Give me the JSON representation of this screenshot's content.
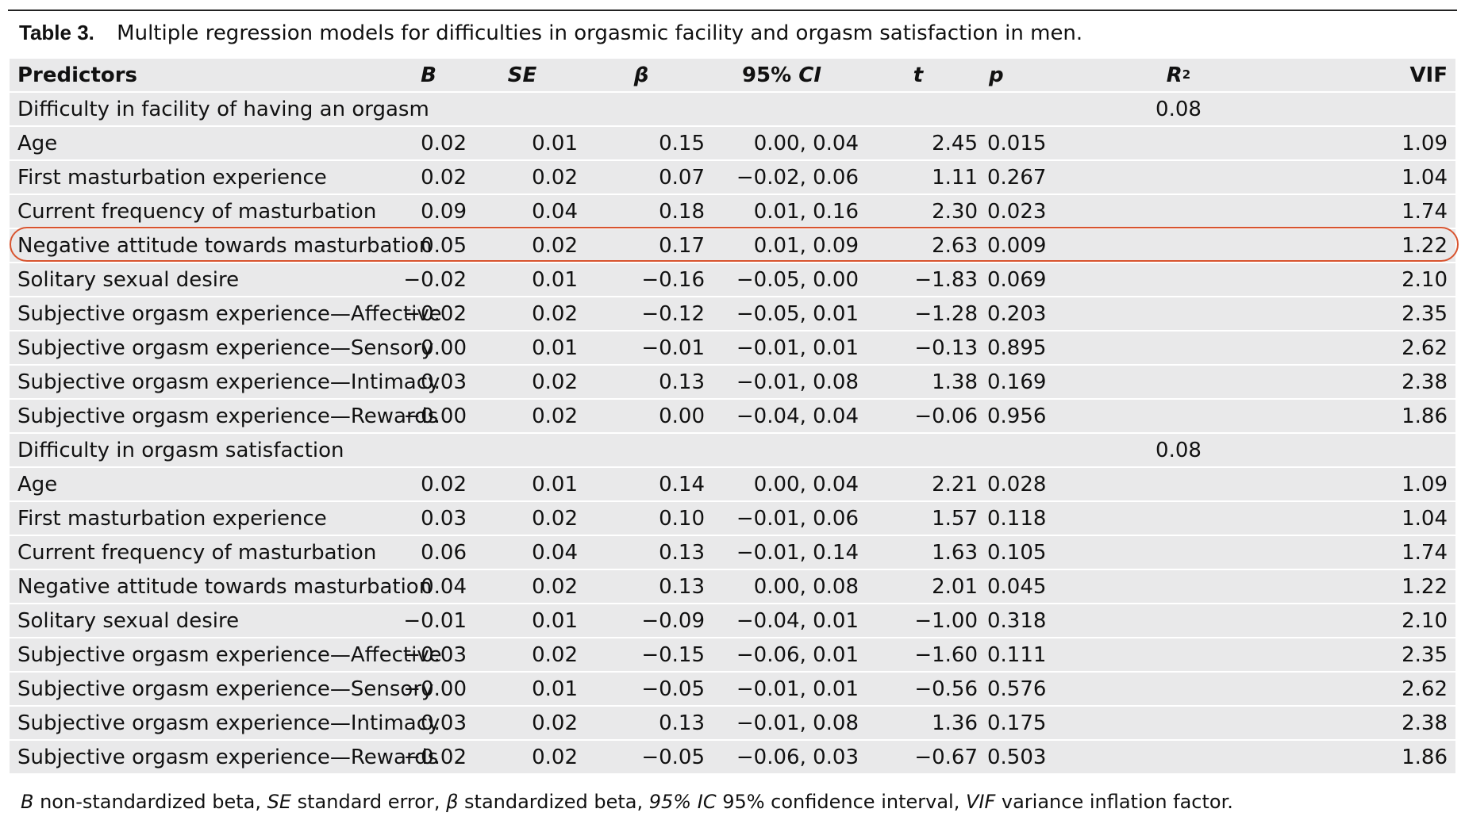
{
  "caption": {
    "label": "Table 3.",
    "text": "Multiple regression models for difficulties in orgasmic facility and orgasm satisfaction in men."
  },
  "headers": {
    "predictors": "Predictors",
    "b": "B",
    "se": "SE",
    "beta": "β",
    "ci_prefix": "95%",
    "ci_italic": "CI",
    "t": "t",
    "p": "p",
    "r2_base": "R",
    "r2_sup": "2",
    "vif": "VIF"
  },
  "sections": [
    {
      "title": "Difficulty in facility of having an orgasm",
      "r2": "0.08",
      "rows": [
        {
          "predictor": "Age",
          "b": "0.02",
          "se": "0.01",
          "beta": "0.15",
          "ci": "0.00, 0.04",
          "t": "2.45",
          "p": "0.015",
          "vif": "1.09"
        },
        {
          "predictor": "First masturbation experience",
          "b": "0.02",
          "se": "0.02",
          "beta": "0.07",
          "ci": "−0.02, 0.06",
          "t": "1.11",
          "p": "0.267",
          "vif": "1.04"
        },
        {
          "predictor": "Current frequency of masturbation",
          "b": "0.09",
          "se": "0.04",
          "beta": "0.18",
          "ci": "0.01, 0.16",
          "t": "2.30",
          "p": "0.023",
          "vif": "1.74"
        },
        {
          "predictor": "Negative attitude towards masturbation",
          "b": "0.05",
          "se": "0.02",
          "beta": "0.17",
          "ci": "0.01, 0.09",
          "t": "2.63",
          "p": "0.009",
          "vif": "1.22"
        },
        {
          "predictor": "Solitary sexual desire",
          "b": "−0.02",
          "se": "0.01",
          "beta": "−0.16",
          "ci": "−0.05, 0.00",
          "t": "−1.83",
          "p": "0.069",
          "vif": "2.10"
        },
        {
          "predictor": "Subjective orgasm experience—Affective",
          "b": "−0.02",
          "se": "0.02",
          "beta": "−0.12",
          "ci": "−0.05, 0.01",
          "t": "−1.28",
          "p": "0.203",
          "vif": "2.35"
        },
        {
          "predictor": "Subjective orgasm experience—Sensory",
          "b": "0.00",
          "se": "0.01",
          "beta": "−0.01",
          "ci": "−0.01, 0.01",
          "t": "−0.13",
          "p": "0.895",
          "vif": "2.62"
        },
        {
          "predictor": "Subjective orgasm experience—Intimacy",
          "b": "0.03",
          "se": "0.02",
          "beta": "0.13",
          "ci": "−0.01, 0.08",
          "t": "1.38",
          "p": "0.169",
          "vif": "2.38"
        },
        {
          "predictor": "Subjective orgasm experience—Rewards",
          "b": "−0.00",
          "se": "0.02",
          "beta": "0.00",
          "ci": "−0.04, 0.04",
          "t": "−0.06",
          "p": "0.956",
          "vif": "1.86"
        }
      ]
    },
    {
      "title": "Difficulty in orgasm satisfaction",
      "r2": "0.08",
      "rows": [
        {
          "predictor": "Age",
          "b": "0.02",
          "se": "0.01",
          "beta": "0.14",
          "ci": "0.00, 0.04",
          "t": "2.21",
          "p": "0.028",
          "vif": "1.09"
        },
        {
          "predictor": "First masturbation experience",
          "b": "0.03",
          "se": "0.02",
          "beta": "0.10",
          "ci": "−0.01, 0.06",
          "t": "1.57",
          "p": "0.118",
          "vif": "1.04"
        },
        {
          "predictor": "Current frequency of masturbation",
          "b": "0.06",
          "se": "0.04",
          "beta": "0.13",
          "ci": "−0.01, 0.14",
          "t": "1.63",
          "p": "0.105",
          "vif": "1.74"
        },
        {
          "predictor": "Negative attitude towards masturbation",
          "b": "0.04",
          "se": "0.02",
          "beta": "0.13",
          "ci": "0.00, 0.08",
          "t": "2.01",
          "p": "0.045",
          "vif": "1.22"
        },
        {
          "predictor": "Solitary sexual desire",
          "b": "−0.01",
          "se": "0.01",
          "beta": "−0.09",
          "ci": "−0.04, 0.01",
          "t": "−1.00",
          "p": "0.318",
          "vif": "2.10"
        },
        {
          "predictor": "Subjective orgasm experience—Affective",
          "b": "−0.03",
          "se": "0.02",
          "beta": "−0.15",
          "ci": "−0.06, 0.01",
          "t": "−1.60",
          "p": "0.111",
          "vif": "2.35"
        },
        {
          "predictor": "Subjective orgasm experience—Sensory",
          "b": "−0.00",
          "se": "0.01",
          "beta": "−0.05",
          "ci": "−0.01, 0.01",
          "t": "−0.56",
          "p": "0.576",
          "vif": "2.62"
        },
        {
          "predictor": "Subjective orgasm experience—Intimacy",
          "b": "0.03",
          "se": "0.02",
          "beta": "0.13",
          "ci": "−0.01, 0.08",
          "t": "1.36",
          "p": "0.175",
          "vif": "2.38"
        },
        {
          "predictor": "Subjective orgasm experience—Rewards",
          "b": "−0.02",
          "se": "0.02",
          "beta": "−0.05",
          "ci": "−0.06, 0.03",
          "t": "−0.67",
          "p": "0.503",
          "vif": "1.86"
        }
      ]
    }
  ],
  "highlight": {
    "section": 0,
    "row": 3,
    "color": "#d8542f"
  },
  "footnote": [
    {
      "text": "B",
      "italic": true
    },
    {
      "text": " non-standardized beta, ",
      "italic": false
    },
    {
      "text": "SE",
      "italic": true
    },
    {
      "text": " standard error, ",
      "italic": false
    },
    {
      "text": "β",
      "italic": true
    },
    {
      "text": " standardized beta, ",
      "italic": false
    },
    {
      "text": "95% IC",
      "italic": true
    },
    {
      "text": " 95% confidence interval, ",
      "italic": false
    },
    {
      "text": "VIF",
      "italic": true
    },
    {
      "text": " variance inflation factor.",
      "italic": false
    }
  ]
}
